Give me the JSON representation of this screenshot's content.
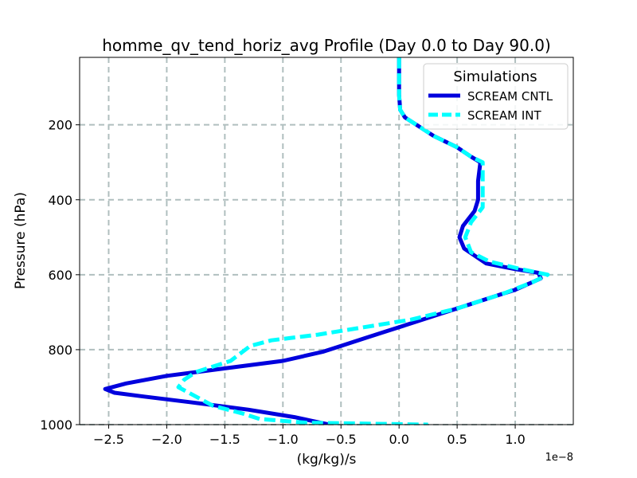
{
  "chart_data": {
    "type": "line",
    "title": "homme_qv_tend_horiz_avg Profile (Day 0.0 to Day 90.0)",
    "xlabel": "(kg/kg)/s",
    "ylabel": "Pressure (hPa)",
    "x_offset_label": "1e−8",
    "xlim": [
      -2.75,
      1.5
    ],
    "ylim": [
      1000,
      20
    ],
    "y_inverted": true,
    "grid": true,
    "x_ticks": [
      -2.5,
      -2.0,
      -1.5,
      -1.0,
      -0.5,
      0.0,
      0.5,
      1.0
    ],
    "x_tick_labels": [
      "−2.5",
      "−2.0",
      "−1.5",
      "−1.0",
      "−0.5",
      "0.0",
      "0.5",
      "1.0"
    ],
    "y_ticks": [
      200,
      400,
      600,
      800,
      1000
    ],
    "y_tick_labels": [
      "200",
      "400",
      "600",
      "800",
      "1000"
    ],
    "legend": {
      "title": "Simulations",
      "position": "top-right"
    },
    "series": [
      {
        "name": "SCREAM CNTL",
        "color": "#0000dd",
        "style": "solid",
        "points": [
          [
            0.0,
            20
          ],
          [
            0.0,
            120
          ],
          [
            0.01,
            160
          ],
          [
            0.05,
            180
          ],
          [
            0.15,
            200
          ],
          [
            0.3,
            230
          ],
          [
            0.5,
            260
          ],
          [
            0.62,
            285
          ],
          [
            0.7,
            300
          ],
          [
            0.68,
            350
          ],
          [
            0.68,
            400
          ],
          [
            0.65,
            430
          ],
          [
            0.55,
            470
          ],
          [
            0.52,
            500
          ],
          [
            0.56,
            530
          ],
          [
            0.75,
            570
          ],
          [
            1.0,
            585
          ],
          [
            1.2,
            595
          ],
          [
            1.22,
            610
          ],
          [
            1.0,
            640
          ],
          [
            0.7,
            670
          ],
          [
            0.4,
            700
          ],
          [
            0.1,
            730
          ],
          [
            -0.1,
            750
          ],
          [
            -0.3,
            770
          ],
          [
            -0.5,
            790
          ],
          [
            -0.65,
            805
          ],
          [
            -1.0,
            830
          ],
          [
            -1.5,
            850
          ],
          [
            -2.0,
            870
          ],
          [
            -2.35,
            890
          ],
          [
            -2.53,
            905
          ],
          [
            -2.45,
            915
          ],
          [
            -2.2,
            925
          ],
          [
            -1.8,
            940
          ],
          [
            -1.3,
            960
          ],
          [
            -0.9,
            980
          ],
          [
            -0.75,
            990
          ],
          [
            -0.6,
            1000
          ]
        ]
      },
      {
        "name": "SCREAM INT",
        "color": "#00ffff",
        "style": "dashed",
        "points": [
          [
            0.0,
            20
          ],
          [
            0.0,
            120
          ],
          [
            0.01,
            160
          ],
          [
            0.05,
            180
          ],
          [
            0.15,
            200
          ],
          [
            0.3,
            230
          ],
          [
            0.5,
            260
          ],
          [
            0.62,
            285
          ],
          [
            0.72,
            300
          ],
          [
            0.72,
            350
          ],
          [
            0.72,
            420
          ],
          [
            0.62,
            460
          ],
          [
            0.57,
            500
          ],
          [
            0.62,
            540
          ],
          [
            0.78,
            565
          ],
          [
            1.05,
            585
          ],
          [
            1.28,
            600
          ],
          [
            1.15,
            620
          ],
          [
            0.9,
            650
          ],
          [
            0.5,
            690
          ],
          [
            0.1,
            720
          ],
          [
            -0.3,
            740
          ],
          [
            -0.7,
            760
          ],
          [
            -1.1,
            775
          ],
          [
            -1.28,
            790
          ],
          [
            -1.45,
            830
          ],
          [
            -1.75,
            860
          ],
          [
            -1.85,
            880
          ],
          [
            -1.9,
            900
          ],
          [
            -1.75,
            925
          ],
          [
            -1.6,
            950
          ],
          [
            -1.35,
            970
          ],
          [
            -1.2,
            985
          ],
          [
            -0.8,
            995
          ],
          [
            0.25,
            1000
          ]
        ]
      }
    ]
  }
}
